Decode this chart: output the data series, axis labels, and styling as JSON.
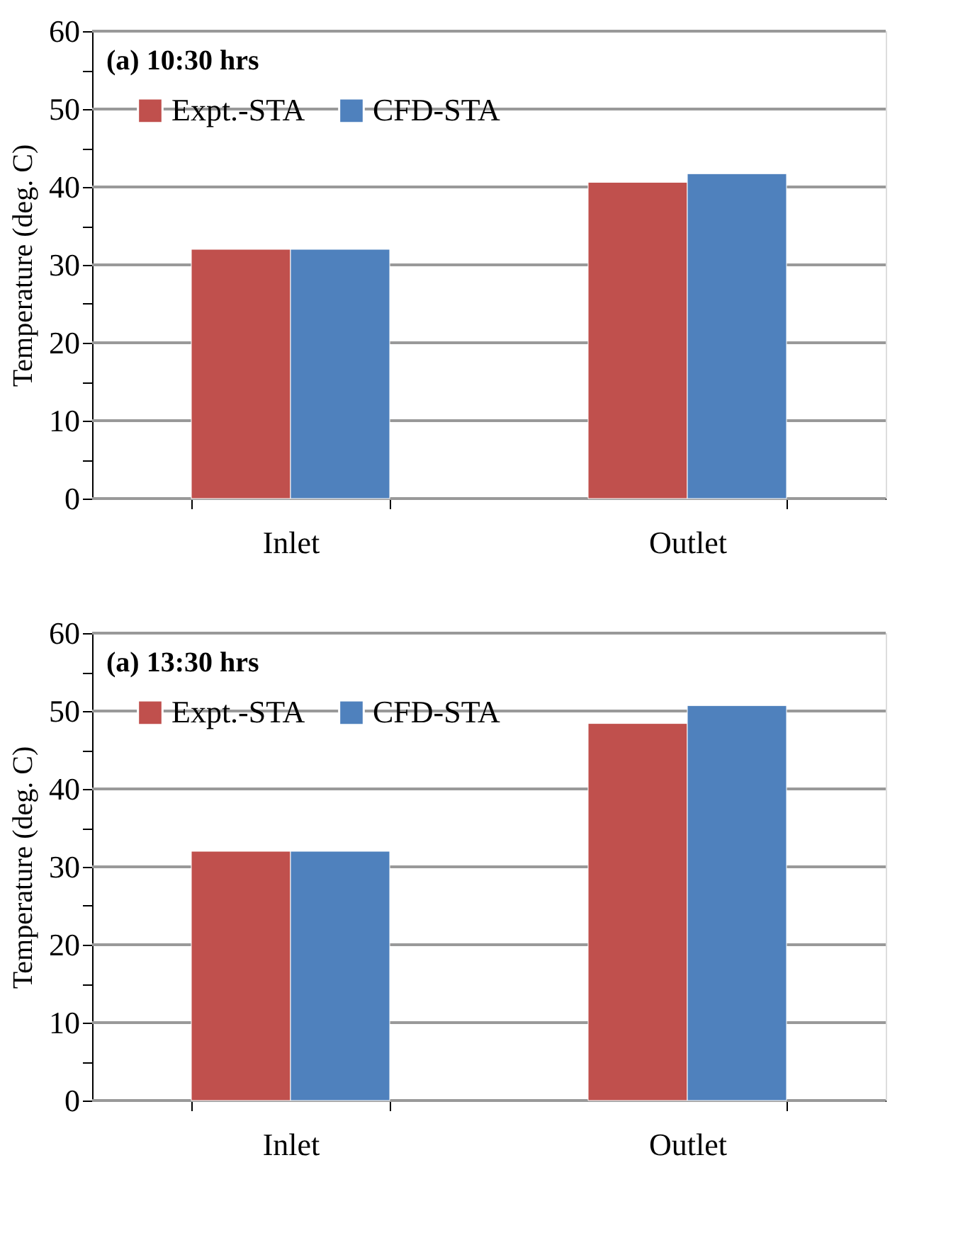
{
  "chart_data": [
    {
      "type": "bar",
      "title": "(a) 10:30 hrs",
      "ylabel": "Temperature (deg. C)",
      "categories": [
        "Inlet",
        "Outlet"
      ],
      "series": [
        {
          "name": "Expt.-STA",
          "color": "#c0504d",
          "values": [
            32,
            40.6
          ]
        },
        {
          "name": "CFD-STA",
          "color": "#4f81bd",
          "values": [
            32,
            41.7
          ]
        }
      ],
      "ylim": [
        0,
        60
      ],
      "yticks": [
        0,
        {
          "value": 5,
          "label": null
        },
        10,
        {
          "value": 15,
          "label": null
        },
        20,
        {
          "value": 25,
          "label": null
        },
        30,
        {
          "value": 35,
          "label": null
        },
        40,
        {
          "value": 45,
          "label": null
        },
        50,
        {
          "value": 55,
          "label": null
        },
        60
      ],
      "grid": "y",
      "legend": "top left"
    },
    {
      "type": "bar",
      "title": "(a) 13:30 hrs",
      "ylabel": "Temperature (deg. C)",
      "categories": [
        "Inlet",
        "Outlet"
      ],
      "series": [
        {
          "name": "Expt.-STA",
          "color": "#c0504d",
          "values": [
            32,
            48.4
          ]
        },
        {
          "name": "CFD-STA",
          "color": "#4f81bd",
          "values": [
            32,
            50.7
          ]
        }
      ],
      "ylim": [
        0,
        60
      ],
      "yticks": [
        0,
        {
          "value": 5,
          "label": null
        },
        10,
        {
          "value": 15,
          "label": null
        },
        20,
        {
          "value": 25,
          "label": null
        },
        30,
        {
          "value": 35,
          "label": null
        },
        40,
        {
          "value": 45,
          "label": null
        },
        50,
        {
          "value": 55,
          "label": null
        },
        60
      ],
      "grid": "y",
      "legend": "top left"
    }
  ]
}
